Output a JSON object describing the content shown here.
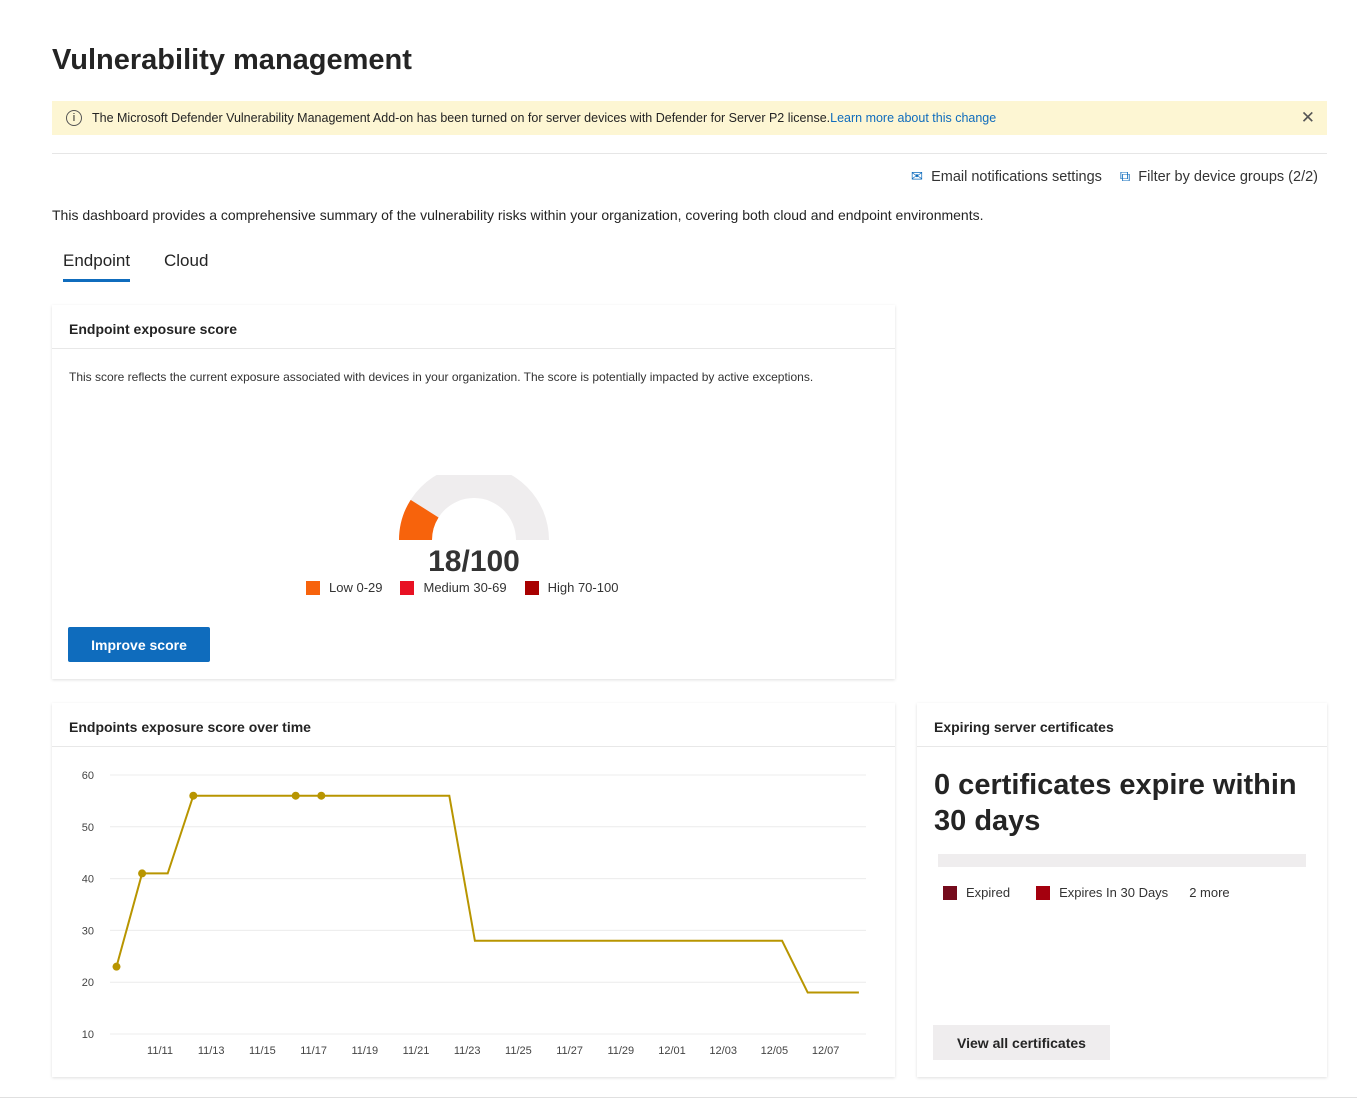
{
  "page_title": "Vulnerability management",
  "banner": {
    "text": "The Microsoft Defender Vulnerability Management Add-on has been turned on for server devices with Defender for Server P2 license.",
    "link": "Learn more about this change",
    "icon": "info-icon",
    "close_icon": "close-icon"
  },
  "actions": {
    "email": "Email notifications settings",
    "filter": "Filter by device groups (2/2)"
  },
  "description": "This dashboard provides a comprehensive summary of the vulnerability risks within your organization, covering both cloud and endpoint environments.",
  "tabs": [
    {
      "label": "Endpoint",
      "active": true
    },
    {
      "label": "Cloud",
      "active": false
    }
  ],
  "exposure_card": {
    "title": "Endpoint exposure score",
    "text": "This score reflects the current exposure associated with devices in your organization. The score is potentially impacted by active exceptions.",
    "score": 18,
    "max": 100,
    "score_label": "18/100",
    "legend": [
      {
        "label": "Low 0-29",
        "color": "#f7630c"
      },
      {
        "label": "Medium 30-69",
        "color": "#e81123"
      },
      {
        "label": "High 70-100",
        "color": "#a80000"
      }
    ],
    "button": "Improve score"
  },
  "chart_card": {
    "title": "Endpoints exposure score over time"
  },
  "chart_data": {
    "type": "line",
    "color": "#b89500",
    "ylim": [
      10,
      60
    ],
    "yticks": [
      60,
      50,
      40,
      30,
      20,
      10
    ],
    "xticks": [
      "11/11",
      "11/13",
      "11/15",
      "11/17",
      "11/19",
      "11/21",
      "11/23",
      "11/25",
      "11/27",
      "11/29",
      "12/01",
      "12/03",
      "12/05",
      "12/07"
    ],
    "points": [
      {
        "x": "11/09",
        "y": 23,
        "marker": true
      },
      {
        "x": "11/10",
        "y": 41,
        "marker": true
      },
      {
        "x": "11/11",
        "y": 41,
        "marker": false
      },
      {
        "x": "11/12",
        "y": 56,
        "marker": true
      },
      {
        "x": "11/16",
        "y": 56,
        "marker": true
      },
      {
        "x": "11/17",
        "y": 56,
        "marker": true
      },
      {
        "x": "11/22",
        "y": 56,
        "marker": false
      },
      {
        "x": "11/23",
        "y": 28,
        "marker": false
      },
      {
        "x": "12/05",
        "y": 28,
        "marker": false
      },
      {
        "x": "12/06",
        "y": 18,
        "marker": false
      },
      {
        "x": "12/08",
        "y": 18,
        "marker": false
      }
    ],
    "grid": true
  },
  "cert_card": {
    "title": "Expiring server certificates",
    "headline": "0 certificates expire within 30 days",
    "legend": [
      {
        "label": "Expired",
        "color": "#750b1c"
      },
      {
        "label": "Expires In 30 Days",
        "color": "#a4000e"
      }
    ],
    "more": "2 more",
    "button": "View all certificates"
  }
}
